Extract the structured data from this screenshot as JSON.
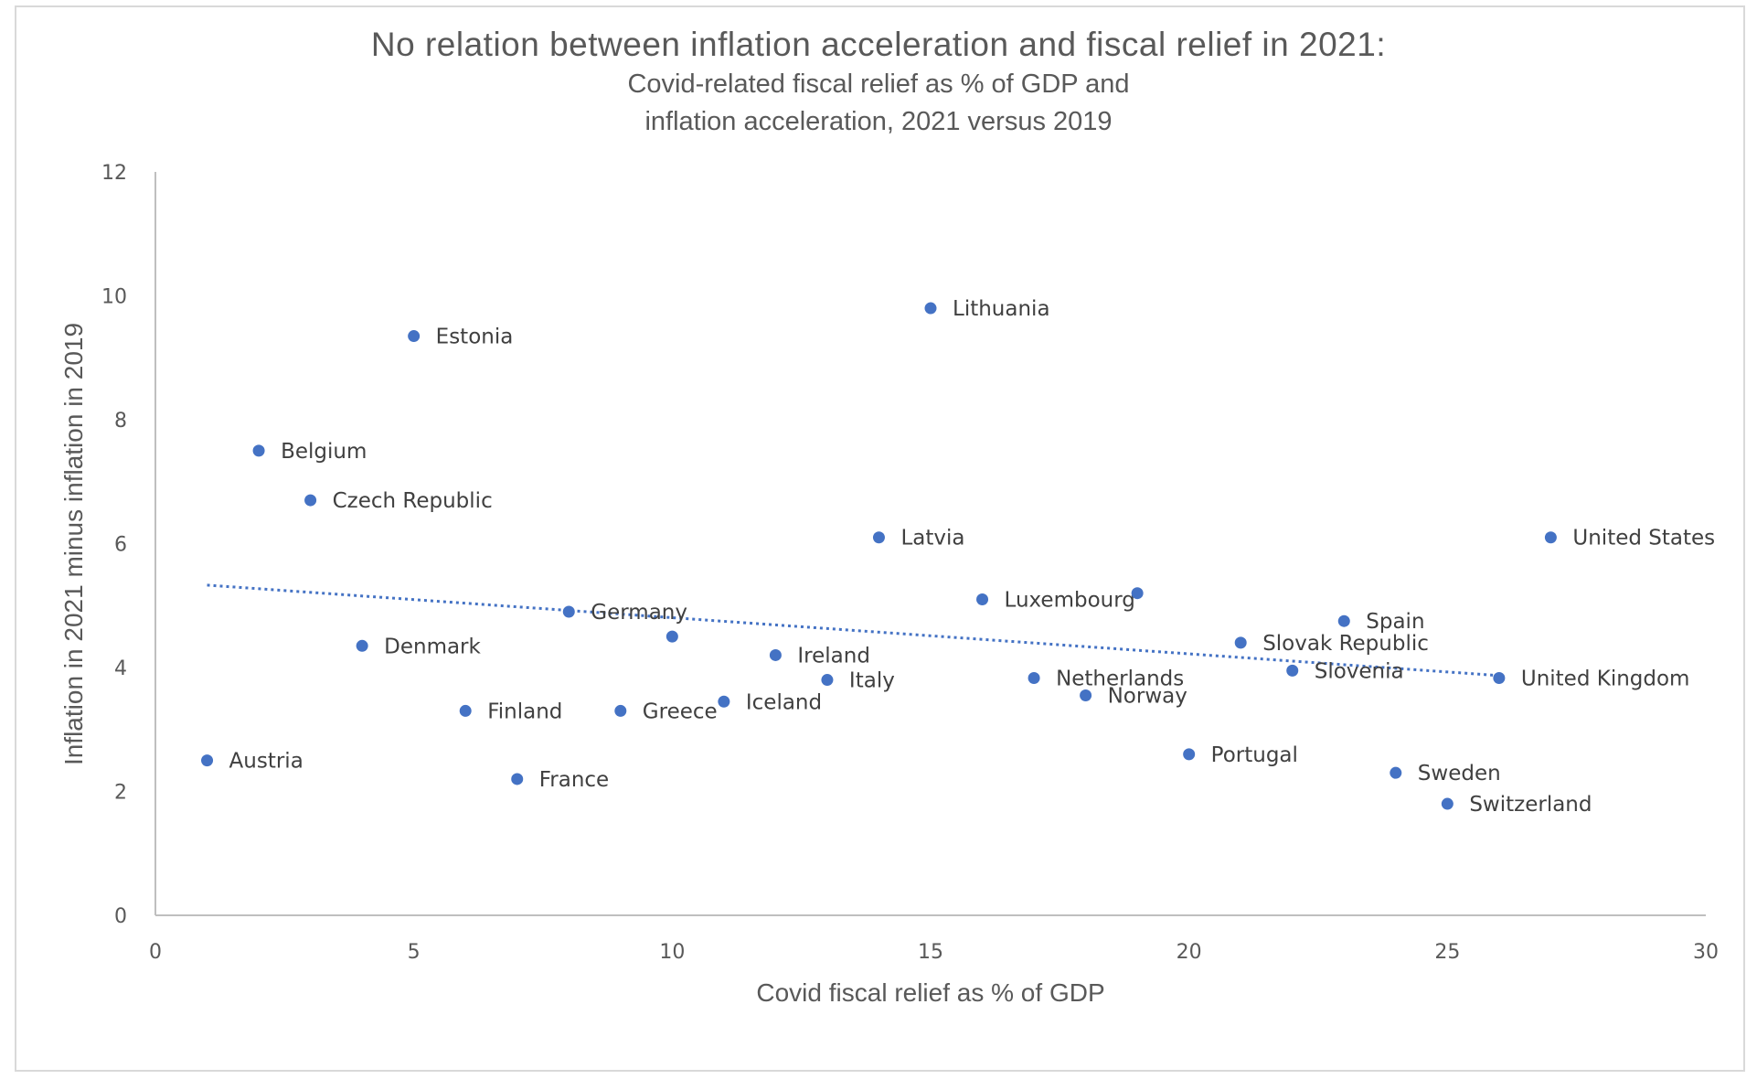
{
  "chart_data": {
    "type": "scatter",
    "title": "No relation between inflation acceleration and fiscal relief in 2021:",
    "subtitle": [
      "Covid-related fiscal relief as % of GDP and",
      "inflation acceleration, 2021 versus 2019"
    ],
    "xlabel": "Covid fiscal relief as % of GDP",
    "ylabel": "Inflation in 2021 minus inflation in 2019",
    "xlim": [
      0,
      30
    ],
    "ylim": [
      0,
      12
    ],
    "xticks": [
      0,
      5,
      10,
      15,
      20,
      25,
      30
    ],
    "yticks": [
      0,
      2,
      4,
      6,
      8,
      10,
      12
    ],
    "grid": false,
    "marker_color": "#4472C4",
    "points": [
      {
        "label": "Austria",
        "x": 1,
        "y": 2.5
      },
      {
        "label": "Belgium",
        "x": 2,
        "y": 7.5
      },
      {
        "label": "Czech Republic",
        "x": 3,
        "y": 6.7
      },
      {
        "label": "Denmark",
        "x": 4,
        "y": 4.35
      },
      {
        "label": "Estonia",
        "x": 5,
        "y": 9.35
      },
      {
        "label": "Finland",
        "x": 6,
        "y": 3.3
      },
      {
        "label": "France",
        "x": 7,
        "y": 2.2
      },
      {
        "label": "Germany",
        "x": 8,
        "y": 4.9
      },
      {
        "label": "Greece",
        "x": 9,
        "y": 3.3
      },
      {
        "label": "",
        "x": 10,
        "y": 4.5
      },
      {
        "label": "Iceland",
        "x": 11,
        "y": 3.45
      },
      {
        "label": "Ireland",
        "x": 12,
        "y": 4.2
      },
      {
        "label": "Italy",
        "x": 13,
        "y": 3.8
      },
      {
        "label": "Latvia",
        "x": 14,
        "y": 6.1
      },
      {
        "label": "Lithuania",
        "x": 15,
        "y": 9.8
      },
      {
        "label": "Luxembourg",
        "x": 16,
        "y": 5.1
      },
      {
        "label": "Netherlands",
        "x": 17,
        "y": 3.83
      },
      {
        "label": "Norway",
        "x": 18,
        "y": 3.55
      },
      {
        "label": "",
        "x": 19,
        "y": 5.2
      },
      {
        "label": "Portugal",
        "x": 20,
        "y": 2.6
      },
      {
        "label": "Slovak Republic",
        "x": 21,
        "y": 4.4
      },
      {
        "label": "Slovenia",
        "x": 22,
        "y": 3.95
      },
      {
        "label": "Spain",
        "x": 23,
        "y": 4.75
      },
      {
        "label": "Sweden",
        "x": 24,
        "y": 2.3
      },
      {
        "label": "Switzerland",
        "x": 25,
        "y": 1.8
      },
      {
        "label": "United Kingdom",
        "x": 26,
        "y": 3.83
      },
      {
        "label": "United States",
        "x": 27,
        "y": 6.1
      }
    ],
    "trendline": {
      "type": "linear",
      "style": "dotted",
      "color": "#4472C4",
      "x_start": 1,
      "x_end": 26,
      "y_start": 5.33,
      "y_end": 3.87
    }
  }
}
